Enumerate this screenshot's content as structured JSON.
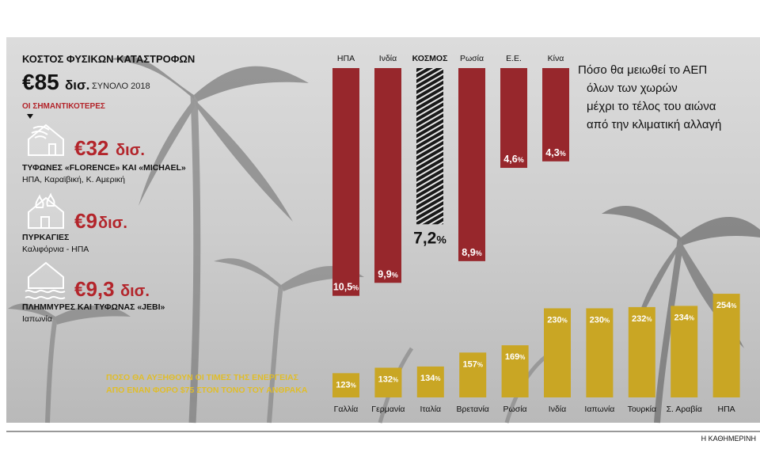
{
  "header": {
    "title": "ΚΟΣΤΟΣ ΦΥΣΙΚΩΝ ΚΑΤΑΣΤΡΟΦΩΝ",
    "total_value": "€85",
    "total_unit": "δισ.",
    "total_label": "ΣΥΝΟΛΟ 2018",
    "section_label": "ΟΙ ΣΗΜΑΝΤΙΚΟΤΕΡΕΣ"
  },
  "disasters": [
    {
      "icon": "hurricane-house-icon",
      "value": "€32",
      "unit": "δισ.",
      "title": "ΤΥΦΩΝΕΣ «FLORENCE» ΚΑΙ «MICHAEL»",
      "place": "ΗΠΑ, Καραϊβική, Κ. Αμερική"
    },
    {
      "icon": "fire-house-icon",
      "value": "€9",
      "unit": "δισ.",
      "title": "ΠΥΡΚΑΓΙΕΣ",
      "place": "Καλιφόρνια - ΗΠΑ"
    },
    {
      "icon": "flood-house-icon",
      "value": "€9,3",
      "unit": "δισ.",
      "title": "ΠΛΗΜΜΥΡΕΣ ΚΑΙ ΤΥΦΩΝΑΣ «JEBI»",
      "place": "Ιαπωνία"
    }
  ],
  "gdp_note": [
    "Πόσο θα μειωθεί το ΑΕΠ",
    "όλων των χωρών",
    "μέχρι το τέλος του αιώνα",
    "από την κλιματική αλλαγή"
  ],
  "energy_note": [
    "ΠΟΣΟ ΘΑ ΑΥΞΗΘΟΥΝ ΟΙ ΤΙΜΕΣ ΤΗΣ ΕΝΕΡΓΕΙΑΣ",
    "ΑΠΟ ΕΝΑΝ ΦΟΡΟ $75 ΣΤΟΝ ΤΟΝΟ ΤΟΥ ΑΝΘΡΑΚΑ"
  ],
  "credit": "Η ΚΑΘΗΜΕΡΙΝΗ",
  "colors": {
    "gdp_bar": "#97272c",
    "world_bar": "#1a1a1a",
    "energy_bar": "#c9a624",
    "accent": "#b3252b"
  },
  "chart_data": [
    {
      "type": "bar",
      "orientation": "vertical-down",
      "categories": [
        "ΗΠΑ",
        "Ινδία",
        "ΚΟΣΜΟΣ",
        "Ρωσία",
        "Ε.Ε.",
        "Κίνα"
      ],
      "values": [
        10.5,
        9.9,
        7.2,
        8.9,
        4.6,
        4.3
      ],
      "labels": [
        "10,5",
        "9,9",
        "7,2",
        "8,9",
        "4,6",
        "4,3"
      ],
      "unit": "%",
      "highlight": "ΚΟΣΜΟΣ"
    },
    {
      "type": "bar",
      "categories": [
        "Γαλλία",
        "Γερμανία",
        "Ιταλία",
        "Βρετανία",
        "Ρωσία",
        "Ινδία",
        "Ιαπωνία",
        "Τουρκία",
        "Σ. Αραβία",
        "ΗΠΑ"
      ],
      "values": [
        123,
        132,
        134,
        157,
        169,
        230,
        230,
        232,
        234,
        254
      ],
      "unit": "%"
    }
  ]
}
